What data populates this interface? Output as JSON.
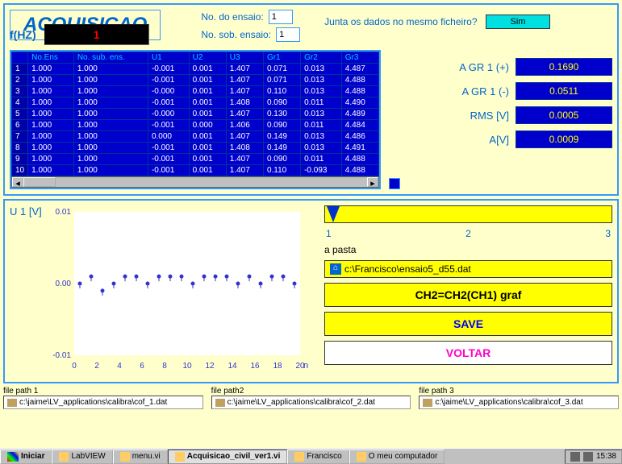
{
  "title": "ACQUISICAO",
  "ensaio": {
    "label": "No. do ensaio:",
    "value": "1"
  },
  "sobensaio": {
    "label": "No. sob. ensaio:",
    "value": "1"
  },
  "fhz": {
    "label": "f(HZ)",
    "value": "1"
  },
  "question": "Junta os dados no mesmo ficheiro?",
  "sim_btn": "Sim",
  "table": {
    "headers": [
      "",
      "No.Ens",
      "No. sub. ens.",
      "U1",
      "U2",
      "U3",
      "Gr1",
      "Gr2",
      "Gr3"
    ],
    "rows": [
      [
        "1",
        "1.000",
        "1.000",
        "-0.001",
        "0.001",
        "1.407",
        "0.071",
        "0.013",
        "4.487"
      ],
      [
        "2",
        "1.000",
        "1.000",
        "-0.001",
        "0.001",
        "1.407",
        "0.071",
        "0.013",
        "4.488"
      ],
      [
        "3",
        "1.000",
        "1.000",
        "-0.000",
        "0.001",
        "1.407",
        "0.110",
        "0.013",
        "4.488"
      ],
      [
        "4",
        "1.000",
        "1.000",
        "-0.001",
        "0.001",
        "1.408",
        "0.090",
        "0.011",
        "4.490"
      ],
      [
        "5",
        "1.000",
        "1.000",
        "-0.000",
        "0.001",
        "1.407",
        "0.130",
        "0.013",
        "4.489"
      ],
      [
        "6",
        "1.000",
        "1.000",
        "-0.001",
        "0.000",
        "1.406",
        "0.090",
        "0.011",
        "4.484"
      ],
      [
        "7",
        "1.000",
        "1.000",
        "0.000",
        "0.001",
        "1.407",
        "0.149",
        "0.013",
        "4.486"
      ],
      [
        "8",
        "1.000",
        "1.000",
        "-0.001",
        "0.001",
        "1.408",
        "0.149",
        "0.013",
        "4.491"
      ],
      [
        "9",
        "1.000",
        "1.000",
        "-0.001",
        "0.001",
        "1.407",
        "0.090",
        "0.011",
        "4.488"
      ],
      [
        "10",
        "1.000",
        "1.000",
        "-0.001",
        "0.001",
        "1.407",
        "0.110",
        "-0.093",
        "4.488"
      ]
    ]
  },
  "readouts": {
    "agr1p": {
      "label": "A GR 1",
      "sign": "(+)",
      "value": "0.1690"
    },
    "agr1m": {
      "label": "A GR 1",
      "sign": "(-)",
      "value": "0.0511"
    },
    "rms": {
      "label": "RMS [V]",
      "value": "0.0005"
    },
    "av": {
      "label": "A[V]",
      "value": "0.0009"
    }
  },
  "chart": {
    "ylabel": "U 1 [V]",
    "ylim": [
      -0.01,
      0.01
    ],
    "yticks": [
      "0.01",
      "0.00",
      "-0.01"
    ],
    "xlim": [
      0,
      20
    ],
    "xticks": [
      "0",
      "2",
      "4",
      "6",
      "8",
      "10",
      "12",
      "14",
      "16",
      "18",
      "20"
    ],
    "xlabel": "n",
    "bg": "#ffffff",
    "axis_color": "#3333cc",
    "point_color": "#3333cc",
    "points_y": [
      0.0,
      0.001,
      -0.001,
      0.0,
      0.001,
      0.001,
      0.0,
      0.001,
      0.001,
      0.001,
      0.0,
      0.001,
      0.001,
      0.001,
      0.0,
      0.001,
      0.0,
      0.001,
      0.001,
      0.0
    ]
  },
  "slider": {
    "ticks": [
      "1",
      "2",
      "3"
    ]
  },
  "pasta": {
    "label": "a pasta",
    "value": "c:\\Francisco\\ensaio5_d55.dat"
  },
  "btn_ch2": "CH2=CH2(CH1) graf",
  "btn_save": "SAVE",
  "btn_voltar": "VOLTAR",
  "filepaths": {
    "fp1": {
      "label": "file path 1",
      "value": "c:\\jaime\\LV_applications\\calibra\\cof_1.dat"
    },
    "fp2": {
      "label": "file path2",
      "value": "c:\\jaime\\LV_applications\\calibra\\cof_2.dat"
    },
    "fp3": {
      "label": "file path 3",
      "value": "c:\\jaime\\LV_applications\\calibra\\cof_3.dat"
    }
  },
  "taskbar": {
    "start": "Iniciar",
    "items": [
      "LabVIEW",
      "menu.vi",
      "Acquisicao_civil_ver1.vi",
      "Francisco",
      "O meu computador"
    ],
    "active_index": 2,
    "time": "15:38"
  }
}
